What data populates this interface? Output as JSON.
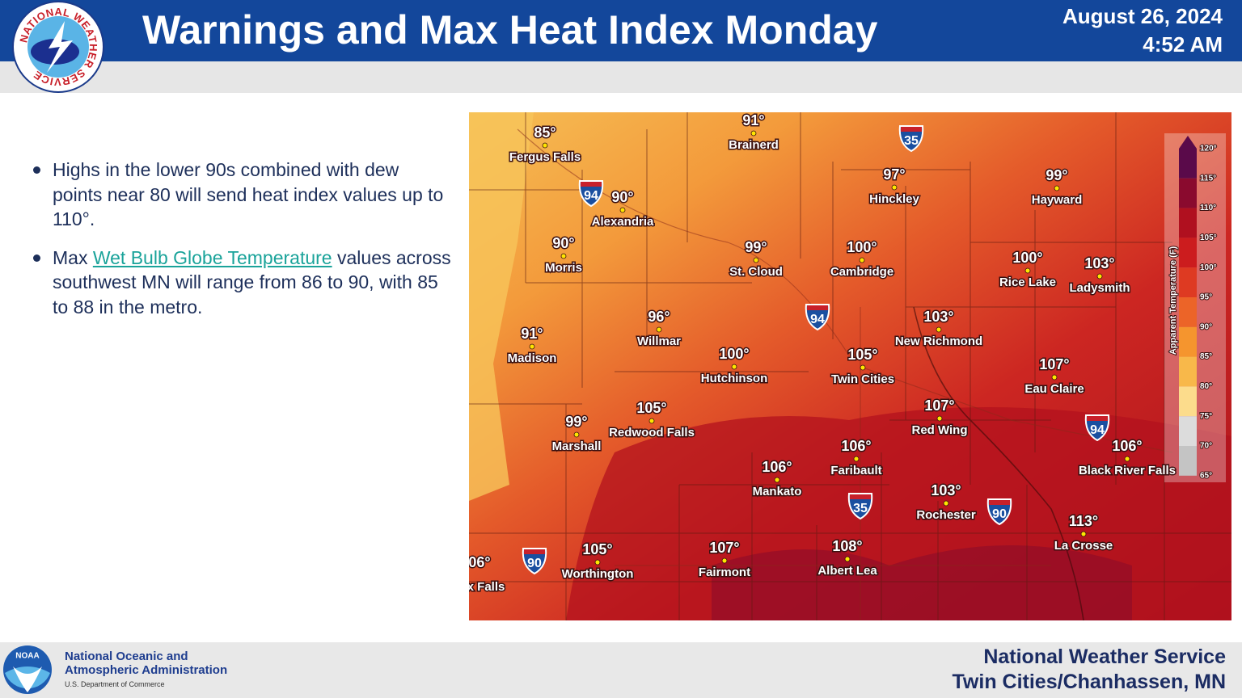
{
  "header": {
    "title": "Warnings and Max Heat Index Monday",
    "date": "August 26, 2024",
    "time": "4:52 AM",
    "logo_text": "NATIONAL WEATHER SERVICE"
  },
  "bullets": [
    {
      "text": "Highs in the lower 90s combined with dew points near 80 will send heat index values up to 110°."
    },
    {
      "before": "Max ",
      "link": "Wet Bulb Globe Temperature",
      "after": " values across southwest MN will range from 86 to 90, with 85 to 88 in the metro."
    }
  ],
  "map": {
    "cities": [
      {
        "name": "Fergus Falls",
        "temp": "85°"
      },
      {
        "name": "Brainerd",
        "temp": "91°"
      },
      {
        "name": "Hinckley",
        "temp": "97°"
      },
      {
        "name": "Hayward",
        "temp": "99°"
      },
      {
        "name": "Alexandria",
        "temp": "90°"
      },
      {
        "name": "Morris",
        "temp": "90°"
      },
      {
        "name": "St. Cloud",
        "temp": "99°"
      },
      {
        "name": "Cambridge",
        "temp": "100°"
      },
      {
        "name": "Rice Lake",
        "temp": "100°"
      },
      {
        "name": "Ladysmith",
        "temp": "103°"
      },
      {
        "name": "Willmar",
        "temp": "96°"
      },
      {
        "name": "New Richmond",
        "temp": "103°"
      },
      {
        "name": "Madison",
        "temp": "91°"
      },
      {
        "name": "Hutchinson",
        "temp": "100°"
      },
      {
        "name": "Twin Cities",
        "temp": "105°"
      },
      {
        "name": "Eau Claire",
        "temp": "107°"
      },
      {
        "name": "Redwood Falls",
        "temp": "105°"
      },
      {
        "name": "Red Wing",
        "temp": "107°"
      },
      {
        "name": "Marshall",
        "temp": "99°"
      },
      {
        "name": "Faribault",
        "temp": "106°"
      },
      {
        "name": "Black River Falls",
        "temp": "106°"
      },
      {
        "name": "Mankato",
        "temp": "106°"
      },
      {
        "name": "Rochester",
        "temp": "103°"
      },
      {
        "name": "La Crosse",
        "temp": "113°"
      },
      {
        "name": "Worthington",
        "temp": "105°"
      },
      {
        "name": "Fairmont",
        "temp": "107°"
      },
      {
        "name": "Albert Lea",
        "temp": "108°"
      },
      {
        "name": "x Falls",
        "temp": "06°"
      }
    ],
    "shields": [
      "35",
      "94",
      "94",
      "94",
      "35",
      "90",
      "90"
    ],
    "legend": {
      "title": "Apparent Temperature (F)",
      "ticks": [
        "120°",
        "115°",
        "110°",
        "105°",
        "100°",
        "95°",
        "90°",
        "85°",
        "80°",
        "75°",
        "70°",
        "65°"
      ]
    }
  },
  "footer": {
    "agency_line1": "National Oceanic and",
    "agency_line2": "Atmospheric Administration",
    "department": "U.S. Department of Commerce",
    "logo_text": "NOAA",
    "office_line1": "National Weather Service",
    "office_line2": "Twin Cities/Chanhassen, MN"
  }
}
